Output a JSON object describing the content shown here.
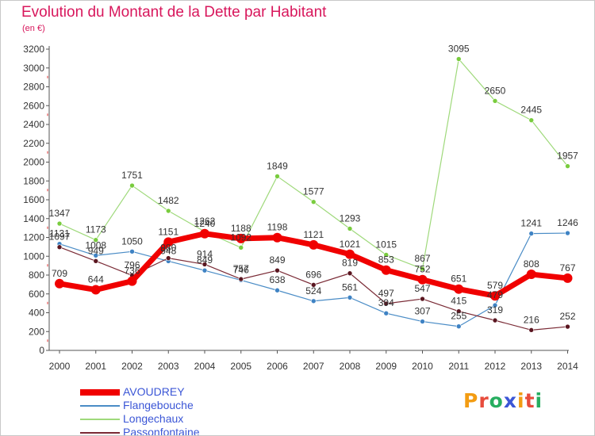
{
  "title": "Evolution du Montant de la Dette par Habitant",
  "unit_label": "(en €)",
  "logo_text": "Proxiti",
  "colors": {
    "title": "#d8175c",
    "axis": "#555555",
    "legend_text": "#3b56d6",
    "logo": [
      "#f39c12",
      "#e74c3c",
      "#27ae60",
      "#3b56d6",
      "#f39c12",
      "#e74c3c",
      "#27ae60"
    ]
  },
  "chart_data": {
    "type": "line",
    "title": "Evolution du Montant de la Dette par Habitant",
    "ylabel": "(en €)",
    "xlabel": "",
    "x": [
      "2000",
      "2001",
      "2002",
      "2003",
      "2004",
      "2005",
      "2006",
      "2007",
      "2008",
      "2009",
      "2010",
      "2011",
      "2012",
      "2013",
      "2014"
    ],
    "ylim": [
      0,
      3200
    ],
    "yticks": [
      0,
      200,
      400,
      600,
      800,
      1000,
      1200,
      1400,
      1600,
      1800,
      2000,
      2200,
      2400,
      2600,
      2800,
      3000,
      3200
    ],
    "grid": false,
    "legend_position": "bottom-left",
    "series": [
      {
        "name": "Flangebouche",
        "color": "#4a8cc6",
        "marker_color": "#3f83c4",
        "line_width": 1.2,
        "values": [
          1131,
          1008,
          1050,
          948,
          849,
          746,
          638,
          524,
          561,
          394,
          307,
          255,
          479,
          1241,
          1246
        ],
        "labels": [
          "1131",
          "1008",
          "1050",
          "948",
          "849",
          "746",
          "638",
          "524",
          "561",
          "394",
          "307",
          "255",
          "479",
          "1241",
          "1246"
        ]
      },
      {
        "name": "Longechaux",
        "color": "#9fd97b",
        "marker_color": "#79cc3e",
        "line_width": 1.2,
        "values": [
          1347,
          1173,
          1751,
          1482,
          1262,
          1092,
          1849,
          1577,
          1293,
          1015,
          867,
          3095,
          2650,
          2445,
          1957
        ],
        "labels": [
          "1347",
          "1173",
          "1751",
          "1482",
          "1262",
          "1092",
          "1849",
          "1577",
          "1293",
          "1015",
          "867",
          "3095",
          "2650",
          "2445",
          "1957"
        ]
      },
      {
        "name": "Passonfontaine",
        "color": "#7a2a35",
        "marker_color": "#5a1620",
        "line_width": 1.2,
        "values": [
          1097,
          949,
          796,
          980,
          914,
          757,
          849,
          696,
          819,
          497,
          547,
          415,
          319,
          216,
          252
        ],
        "labels": [
          "1097",
          "949",
          "796",
          "980",
          "914",
          "757",
          "849",
          "696",
          "819",
          "497",
          "547",
          "415",
          "319",
          "216",
          "252"
        ]
      },
      {
        "name": "AVOUDREY",
        "color": "#f00000",
        "marker_color": "#f00000",
        "line_width": 7,
        "values": [
          709,
          644,
          736,
          1151,
          1240,
          1188,
          1198,
          1121,
          1021,
          853,
          752,
          651,
          579,
          808,
          767
        ],
        "labels": [
          "709",
          "644",
          "736",
          "1151",
          "1240",
          "1188",
          "1198",
          "1121",
          "1021",
          "853",
          "752",
          "651",
          "579",
          "808",
          "767"
        ]
      }
    ],
    "legend": [
      "AVOUDREY",
      "Flangebouche",
      "Longechaux",
      "Passonfontaine"
    ]
  }
}
